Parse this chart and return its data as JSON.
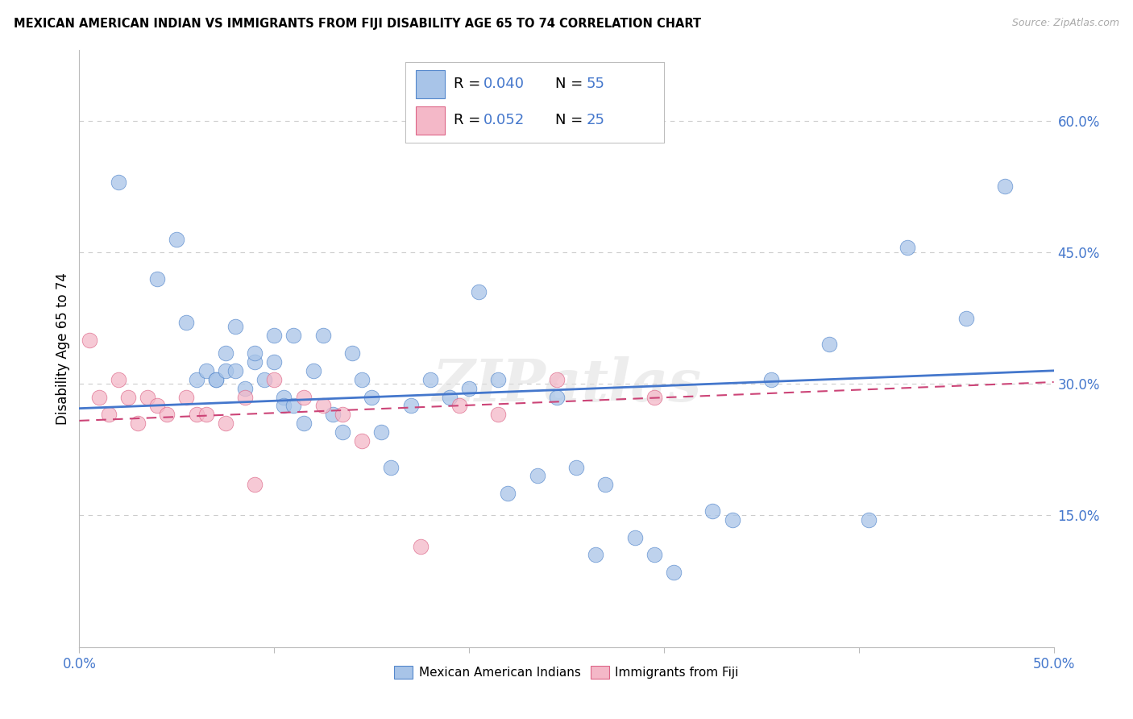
{
  "title": "MEXICAN AMERICAN INDIAN VS IMMIGRANTS FROM FIJI DISABILITY AGE 65 TO 74 CORRELATION CHART",
  "source": "Source: ZipAtlas.com",
  "ylabel": "Disability Age 65 to 74",
  "ytick_labels": [
    "60.0%",
    "45.0%",
    "30.0%",
    "15.0%"
  ],
  "ytick_values": [
    0.6,
    0.45,
    0.3,
    0.15
  ],
  "xlim": [
    0.0,
    0.5
  ],
  "ylim": [
    0.0,
    0.68
  ],
  "legend_r_blue": "0.040",
  "legend_n_blue": "55",
  "legend_r_pink": "0.052",
  "legend_n_pink": "25",
  "legend_label_blue": "Mexican American Indians",
  "legend_label_pink": "Immigrants from Fiji",
  "blue_fill": "#a8c4e8",
  "pink_fill": "#f4b8c8",
  "blue_edge": "#5588cc",
  "pink_edge": "#dd6688",
  "line_blue": "#4477cc",
  "line_pink": "#cc4477",
  "watermark": "ZIPatlas",
  "blue_points_x": [
    0.02,
    0.04,
    0.05,
    0.055,
    0.06,
    0.065,
    0.07,
    0.07,
    0.075,
    0.075,
    0.08,
    0.08,
    0.085,
    0.09,
    0.09,
    0.095,
    0.1,
    0.1,
    0.105,
    0.105,
    0.11,
    0.11,
    0.115,
    0.12,
    0.125,
    0.13,
    0.135,
    0.14,
    0.145,
    0.15,
    0.155,
    0.16,
    0.17,
    0.18,
    0.19,
    0.2,
    0.205,
    0.215,
    0.22,
    0.235,
    0.245,
    0.255,
    0.265,
    0.27,
    0.285,
    0.295,
    0.305,
    0.325,
    0.335,
    0.355,
    0.385,
    0.405,
    0.425,
    0.455,
    0.475
  ],
  "blue_points_y": [
    0.53,
    0.42,
    0.465,
    0.37,
    0.305,
    0.315,
    0.305,
    0.305,
    0.315,
    0.335,
    0.365,
    0.315,
    0.295,
    0.325,
    0.335,
    0.305,
    0.355,
    0.325,
    0.285,
    0.275,
    0.355,
    0.275,
    0.255,
    0.315,
    0.355,
    0.265,
    0.245,
    0.335,
    0.305,
    0.285,
    0.245,
    0.205,
    0.275,
    0.305,
    0.285,
    0.295,
    0.405,
    0.305,
    0.175,
    0.195,
    0.285,
    0.205,
    0.105,
    0.185,
    0.125,
    0.105,
    0.085,
    0.155,
    0.145,
    0.305,
    0.345,
    0.145,
    0.455,
    0.375,
    0.525
  ],
  "pink_points_x": [
    0.005,
    0.01,
    0.015,
    0.02,
    0.025,
    0.03,
    0.035,
    0.04,
    0.045,
    0.055,
    0.06,
    0.065,
    0.075,
    0.085,
    0.09,
    0.1,
    0.115,
    0.125,
    0.135,
    0.145,
    0.175,
    0.195,
    0.215,
    0.245,
    0.295
  ],
  "pink_points_y": [
    0.35,
    0.285,
    0.265,
    0.305,
    0.285,
    0.255,
    0.285,
    0.275,
    0.265,
    0.285,
    0.265,
    0.265,
    0.255,
    0.285,
    0.185,
    0.305,
    0.285,
    0.275,
    0.265,
    0.235,
    0.115,
    0.275,
    0.265,
    0.305,
    0.285
  ],
  "blue_line_x": [
    0.0,
    0.5
  ],
  "blue_line_y": [
    0.272,
    0.315
  ],
  "pink_line_x": [
    0.0,
    0.5
  ],
  "pink_line_y": [
    0.258,
    0.302
  ],
  "grid_color": "#cccccc",
  "ytick_color": "#4477cc",
  "xtick_color": "#4477cc",
  "xtick_positions": [
    0.0,
    0.1,
    0.2,
    0.3,
    0.4,
    0.5
  ],
  "xtick_labels": [
    "0.0%",
    "",
    "",
    "",
    "",
    "50.0%"
  ]
}
